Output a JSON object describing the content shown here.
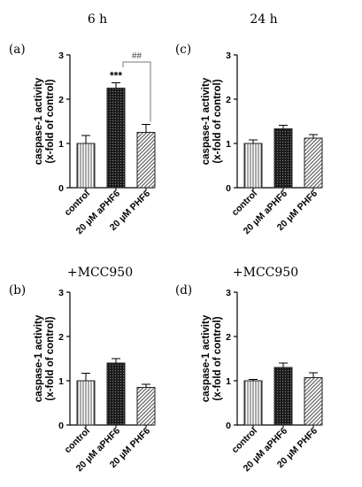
{
  "column_headings": [
    "6 h",
    "24 h"
  ],
  "row_headings": [
    "+MCC950",
    "+MCC950"
  ],
  "chart_data": [
    {
      "type": "bar",
      "panel": "(a)",
      "ylabel_line1": "caspase-1 activity",
      "ylabel_line2": "(x-fold of control)",
      "categories": [
        "control",
        "20 µM aPHF6",
        "20 µM PHF6"
      ],
      "values": [
        1.0,
        2.25,
        1.25
      ],
      "errors": [
        0.18,
        0.12,
        0.18
      ],
      "ylim": [
        0,
        3
      ],
      "yticks": [
        "0",
        "1",
        "2",
        "3"
      ],
      "annotations": {
        "stars": "***",
        "hash": "##"
      }
    },
    {
      "type": "bar",
      "panel": "(c)",
      "ylabel_line1": "caspase-1 activity",
      "ylabel_line2": "(x-fold of control)",
      "categories": [
        "control",
        "20 µM aPHF6",
        "20 µM PHF6"
      ],
      "values": [
        1.0,
        1.33,
        1.12
      ],
      "errors": [
        0.08,
        0.08,
        0.08
      ],
      "ylim": [
        0,
        3
      ],
      "yticks": [
        "0",
        "1",
        "2",
        "3"
      ]
    },
    {
      "type": "bar",
      "panel": "(b)",
      "ylabel_line1": "caspase-1 activity",
      "ylabel_line2": "(x-fold of control)",
      "categories": [
        "control",
        "20 µM aPHF6",
        "20 µM PHF6"
      ],
      "values": [
        1.0,
        1.4,
        0.85
      ],
      "errors": [
        0.17,
        0.1,
        0.07
      ],
      "ylim": [
        0,
        3
      ],
      "yticks": [
        "0",
        "1",
        "2",
        "3"
      ]
    },
    {
      "type": "bar",
      "panel": "(d)",
      "ylabel_line1": "caspase-1 activity",
      "ylabel_line2": "(x-fold of control)",
      "categories": [
        "control",
        "20 µM aPHF6",
        "20 µM PHF6"
      ],
      "values": [
        1.0,
        1.3,
        1.07
      ],
      "errors": [
        0.03,
        0.1,
        0.11
      ],
      "ylim": [
        0,
        3
      ],
      "yticks": [
        "0",
        "1",
        "2",
        "3"
      ]
    }
  ]
}
